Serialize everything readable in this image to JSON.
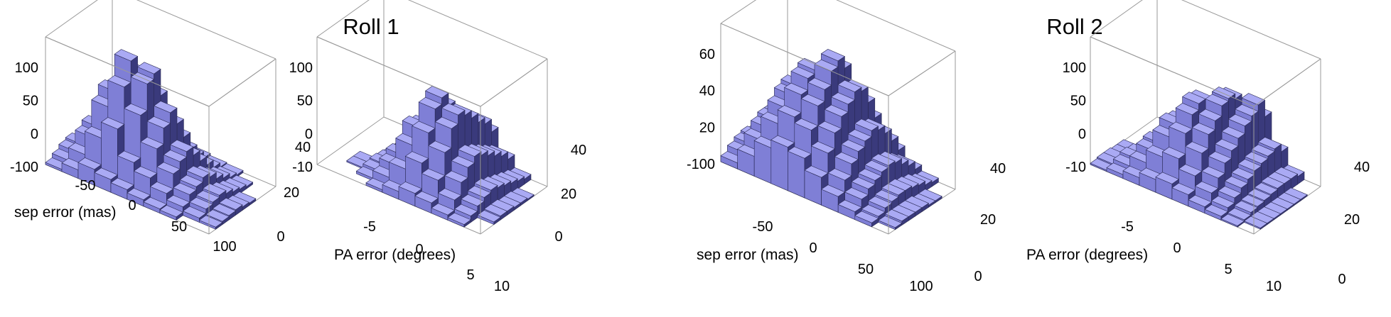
{
  "figure": {
    "group_titles": [
      "Roll 1",
      "Roll 2"
    ]
  },
  "colors": {
    "bar_top": "#aaaaf4",
    "bar_side_light": "#7f7fd6",
    "bar_side_dark": "#3a3a7c",
    "edge": "#2a2a55",
    "box": "#9a9a9a"
  },
  "chart_data": [
    {
      "type": "3d-histogram",
      "group": "Roll 1",
      "title": "",
      "xlabel": "sep error (mas)",
      "ylabel": "",
      "zlabel": "",
      "xlim": [
        -100,
        100
      ],
      "ylim": [
        0,
        50
      ],
      "zlim": [
        0,
        120
      ],
      "x_ticks": [
        "-50",
        "0",
        "50",
        "100"
      ],
      "y_ticks": [
        "0",
        "20",
        "40"
      ],
      "z_ticks": [
        "-100",
        "0",
        "50",
        "100"
      ],
      "grid": false,
      "legend": "none",
      "x_centers": [
        -90,
        -70,
        -50,
        -30,
        -10,
        10,
        30,
        50,
        70,
        90
      ],
      "y_centers": [
        2.5,
        7.5,
        12.5,
        17.5,
        22.5,
        27.5,
        32.5,
        37.5,
        42.5,
        47.5
      ],
      "counts": [
        [
          2,
          8,
          15,
          12,
          9,
          6,
          4,
          3,
          0,
          0
        ],
        [
          6,
          18,
          40,
          55,
          30,
          22,
          14,
          8,
          4,
          2
        ],
        [
          10,
          30,
          65,
          90,
          70,
          45,
          28,
          15,
          8,
          3
        ],
        [
          12,
          35,
          75,
          110,
          95,
          60,
          35,
          18,
          10,
          4
        ],
        [
          8,
          28,
          60,
          95,
          100,
          70,
          40,
          22,
          12,
          5
        ],
        [
          5,
          18,
          40,
          70,
          75,
          55,
          32,
          18,
          9,
          3
        ],
        [
          3,
          10,
          25,
          45,
          48,
          38,
          22,
          12,
          6,
          2
        ],
        [
          1,
          5,
          12,
          25,
          28,
          22,
          14,
          8,
          4,
          0
        ],
        [
          0,
          2,
          6,
          12,
          14,
          11,
          7,
          4,
          2,
          0
        ],
        [
          0,
          0,
          2,
          5,
          6,
          5,
          3,
          2,
          0,
          0
        ]
      ]
    },
    {
      "type": "3d-histogram",
      "group": "Roll 1",
      "title": "",
      "xlabel": "PA error (degrees)",
      "ylabel": "",
      "zlabel": "",
      "xlim": [
        -10,
        10
      ],
      "ylim": [
        0,
        50
      ],
      "zlim": [
        0,
        100
      ],
      "x_ticks": [
        "-5",
        "0",
        "5",
        "10"
      ],
      "y_ticks": [
        "0",
        "20",
        "40"
      ],
      "z_ticks": [
        "-10",
        "0",
        "50",
        "100"
      ],
      "grid": false,
      "legend": "none",
      "x_centers": [
        -9,
        -7,
        -5,
        -3,
        -1,
        1,
        3,
        5,
        7,
        9
      ],
      "y_centers": [
        2.5,
        7.5,
        12.5,
        17.5,
        22.5,
        27.5,
        32.5,
        37.5,
        42.5,
        47.5
      ],
      "counts": [
        [
          0,
          0,
          0,
          2,
          6,
          10,
          8,
          4,
          2,
          0
        ],
        [
          0,
          0,
          2,
          8,
          20,
          30,
          22,
          12,
          5,
          0
        ],
        [
          0,
          1,
          4,
          14,
          35,
          50,
          40,
          22,
          9,
          2
        ],
        [
          0,
          1,
          5,
          18,
          45,
          65,
          55,
          30,
          12,
          3
        ],
        [
          0,
          0,
          4,
          16,
          42,
          70,
          62,
          35,
          14,
          3
        ],
        [
          0,
          0,
          3,
          12,
          34,
          60,
          58,
          32,
          12,
          2
        ],
        [
          0,
          0,
          2,
          8,
          25,
          50,
          52,
          28,
          10,
          2
        ],
        [
          0,
          0,
          1,
          5,
          16,
          38,
          45,
          24,
          8,
          1
        ],
        [
          0,
          0,
          0,
          3,
          10,
          28,
          40,
          20,
          6,
          0
        ],
        [
          0,
          0,
          0,
          2,
          6,
          18,
          30,
          14,
          4,
          0
        ]
      ]
    },
    {
      "type": "3d-histogram",
      "group": "Roll 2",
      "title": "",
      "xlabel": "sep error (mas)",
      "ylabel": "",
      "zlabel": "",
      "xlim": [
        -100,
        100
      ],
      "ylim": [
        0,
        50
      ],
      "zlim": [
        0,
        70
      ],
      "x_ticks": [
        "-50",
        "0",
        "50",
        "100"
      ],
      "y_ticks": [
        "0",
        "20",
        "40"
      ],
      "z_ticks": [
        "-100",
        "20",
        "40",
        "60"
      ],
      "grid": false,
      "legend": "none",
      "x_centers": [
        -90,
        -70,
        -50,
        -30,
        -10,
        10,
        30,
        50,
        70,
        90
      ],
      "y_centers": [
        2.5,
        7.5,
        12.5,
        17.5,
        22.5,
        27.5,
        32.5,
        37.5,
        42.5,
        47.5
      ],
      "counts": [
        [
          3,
          10,
          18,
          22,
          20,
          14,
          8,
          4,
          2,
          0
        ],
        [
          6,
          16,
          28,
          35,
          32,
          24,
          14,
          8,
          3,
          1
        ],
        [
          8,
          20,
          34,
          44,
          42,
          32,
          20,
          11,
          5,
          2
        ],
        [
          9,
          22,
          38,
          50,
          48,
          38,
          24,
          13,
          6,
          2
        ],
        [
          8,
          22,
          40,
          52,
          55,
          42,
          27,
          15,
          7,
          2
        ],
        [
          6,
          18,
          35,
          48,
          58,
          46,
          30,
          16,
          7,
          2
        ],
        [
          4,
          14,
          28,
          40,
          52,
          44,
          28,
          15,
          6,
          1
        ],
        [
          2,
          9,
          20,
          30,
          40,
          36,
          24,
          12,
          5,
          1
        ],
        [
          1,
          5,
          12,
          20,
          28,
          26,
          18,
          9,
          3,
          0
        ],
        [
          0,
          2,
          6,
          12,
          18,
          16,
          11,
          5,
          2,
          0
        ]
      ]
    },
    {
      "type": "3d-histogram",
      "group": "Roll 2",
      "title": "",
      "xlabel": "PA error (degrees)",
      "ylabel": "",
      "zlabel": "",
      "xlim": [
        -10,
        10
      ],
      "ylim": [
        0,
        50
      ],
      "zlim": [
        0,
        100
      ],
      "x_ticks": [
        "-5",
        "0",
        "5",
        "10"
      ],
      "y_ticks": [
        "0",
        "20",
        "40"
      ],
      "z_ticks": [
        "-10",
        "0",
        "50",
        "100"
      ],
      "grid": false,
      "legend": "none",
      "x_centers": [
        -9,
        -7,
        -5,
        -3,
        -1,
        1,
        3,
        5,
        7,
        9
      ],
      "y_centers": [
        2.5,
        7.5,
        12.5,
        17.5,
        22.5,
        27.5,
        32.5,
        37.5,
        42.5,
        47.5
      ],
      "counts": [
        [
          1,
          3,
          6,
          10,
          12,
          9,
          5,
          3,
          1,
          0
        ],
        [
          2,
          6,
          14,
          24,
          28,
          20,
          12,
          6,
          2,
          1
        ],
        [
          2,
          8,
          20,
          36,
          44,
          34,
          20,
          10,
          4,
          1
        ],
        [
          1,
          7,
          22,
          42,
          55,
          45,
          28,
          14,
          5,
          1
        ],
        [
          1,
          5,
          18,
          40,
          60,
          52,
          34,
          17,
          6,
          1
        ],
        [
          0,
          3,
          12,
          32,
          58,
          60,
          40,
          20,
          7,
          1
        ],
        [
          0,
          2,
          8,
          24,
          50,
          62,
          46,
          22,
          8,
          1
        ],
        [
          0,
          1,
          5,
          16,
          40,
          58,
          50,
          24,
          8,
          1
        ],
        [
          0,
          0,
          3,
          10,
          28,
          48,
          55,
          26,
          8,
          0
        ],
        [
          0,
          0,
          1,
          5,
          16,
          32,
          42,
          20,
          6,
          0
        ]
      ]
    }
  ]
}
